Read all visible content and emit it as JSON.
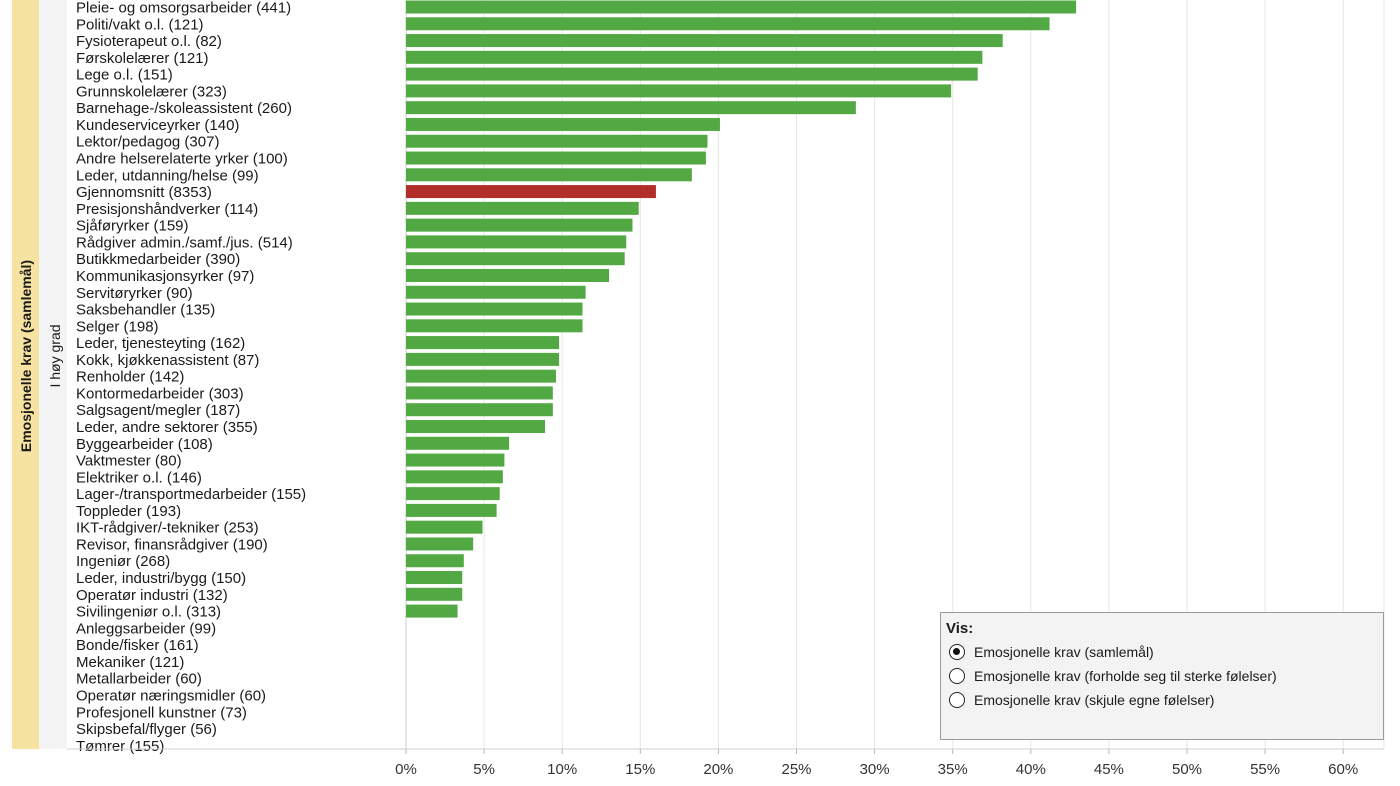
{
  "row_header": {
    "outer": "Emosjonelle krav (samlemål)",
    "inner": "I høy grad"
  },
  "colors": {
    "bar": "#52a843",
    "highlight": "#b22e2a",
    "grid": "#e6e6e6"
  },
  "chart_data": {
    "type": "bar",
    "orientation": "horizontal",
    "xlim": [
      0,
      62
    ],
    "grid": true,
    "legend": "bottom-right",
    "tick_values": [
      0,
      5,
      10,
      15,
      20,
      25,
      30,
      35,
      40,
      45,
      50,
      55,
      60
    ],
    "tick_labels": [
      "0%",
      "5%",
      "10%",
      "15%",
      "20%",
      "25%",
      "30%",
      "35%",
      "40%",
      "45%",
      "50%",
      "55%",
      "60%"
    ],
    "highlight_category": "Gjennomsnitt   (8353)",
    "categories": [
      "Pleie- og omsorgsarbeider (441)",
      "Politi/vakt o.l. (121)",
      "Fysioterapeut o.l. (82)",
      "Førskolelærer (121)",
      "Lege o.l. (151)",
      "Grunnskolelærer (323)",
      "Barnehage-/skoleassistent (260)",
      "Kundeserviceyrker (140)",
      "Lektor/pedagog (307)",
      "Andre helserelaterte yrker (100)",
      "Leder, utdanning/helse  (99)",
      "Gjennomsnitt   (8353)",
      "Presisjonshåndverker (114)",
      "Sjåføryrker (159)",
      "Rådgiver admin./samf./jus. (514)",
      "Butikkmedarbeider (390)",
      "Kommunikasjonsyrker (97)",
      "Servitøryrker (90)",
      "Saksbehandler (135)",
      "Selger (198)",
      "Leder, tjenesteyting (162)",
      "Kokk, kjøkkenassistent (87)",
      "Renholder (142)",
      "Kontormedarbeider (303)",
      "Salgsagent/megler (187)",
      "Leder, andre sektorer (355)",
      "Byggearbeider (108)",
      "Vaktmester (80)",
      "Elektriker o.l. (146)",
      "Lager-/transportmedarbeider (155)",
      "Toppleder (193)",
      "IKT-rådgiver/-tekniker (253)",
      "Revisor, finansrådgiver (190)",
      "Ingeniør (268)",
      "Leder, industri/bygg (150)",
      "Operatør industri (132)",
      "Sivilingeniør o.l. (313)",
      "Anleggsarbeider (99)",
      "Bonde/fisker (161)",
      "Mekaniker (121)",
      "Metallarbeider (60)",
      "Operatør næringsmidler (60)",
      "Profesjonell kunstner (73)",
      "Skipsbefal/flyger (56)",
      "Tømrer (155)"
    ],
    "values": [
      42.9,
      41.2,
      38.2,
      36.9,
      36.6,
      34.9,
      28.8,
      20.1,
      19.3,
      19.2,
      18.3,
      16.0,
      14.9,
      14.5,
      14.1,
      14.0,
      13.0,
      11.5,
      11.3,
      11.3,
      9.8,
      9.8,
      9.6,
      9.4,
      9.4,
      8.9,
      6.6,
      6.3,
      6.2,
      6.0,
      5.8,
      4.9,
      4.3,
      3.7,
      3.6,
      3.6,
      3.3,
      null,
      null,
      null,
      null,
      null,
      null,
      null,
      null
    ]
  },
  "legend": {
    "title": "Vis:",
    "options": [
      {
        "label": "Emosjonelle krav (samlemål)",
        "checked": true
      },
      {
        "label": "Emosjonelle krav (forholde seg til sterke følelser)",
        "checked": false
      },
      {
        "label": "Emosjonelle krav (skjule egne følelser)",
        "checked": false
      }
    ]
  }
}
